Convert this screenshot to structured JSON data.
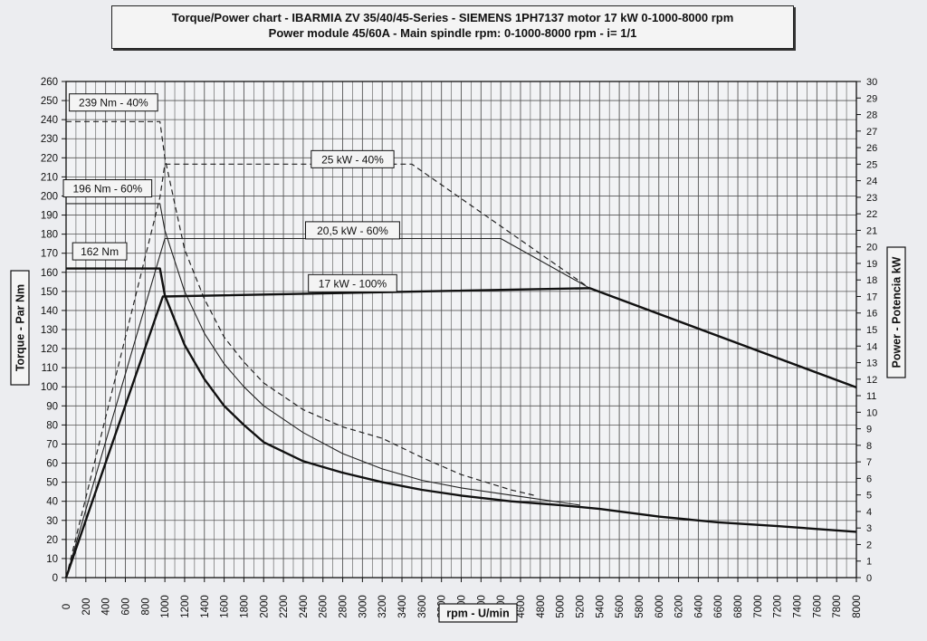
{
  "chart_data": {
    "type": "line",
    "title": "Torque/Power chart - IBARMIA ZV 35/40/45-Series - SIEMENS 1PH7137 motor 17 kW 0-1000-8000 rpm",
    "subtitle": "Power module 45/60A - Main spindle rpm: 0-1000-8000 rpm - i= 1/1",
    "xlabel": "rpm - U/min",
    "ylabel_left": "Torque - Par Nm",
    "ylabel_right": "Power - Potencia kW",
    "xlim": [
      0,
      8000
    ],
    "ylim_left": [
      0,
      260
    ],
    "ylim_right": [
      0,
      30
    ],
    "x_ticks": [
      0,
      200,
      400,
      600,
      800,
      1000,
      1200,
      1400,
      1600,
      1800,
      2000,
      2200,
      2400,
      2600,
      2800,
      3000,
      3200,
      3400,
      3600,
      3800,
      4000,
      4200,
      4400,
      4600,
      4800,
      5000,
      5200,
      5400,
      5600,
      5800,
      6000,
      6200,
      6400,
      6600,
      6800,
      7000,
      7200,
      7400,
      7600,
      7800,
      8000
    ],
    "y_ticks_left": [
      0,
      10,
      20,
      30,
      40,
      50,
      60,
      70,
      80,
      90,
      100,
      110,
      120,
      130,
      140,
      150,
      160,
      170,
      180,
      190,
      200,
      210,
      220,
      230,
      240,
      250,
      260
    ],
    "y_ticks_right": [
      0,
      1,
      2,
      3,
      4,
      5,
      6,
      7,
      8,
      9,
      10,
      11,
      12,
      13,
      14,
      15,
      16,
      17,
      18,
      19,
      20,
      21,
      22,
      23,
      24,
      25,
      26,
      27,
      28,
      29,
      30
    ],
    "grid": true,
    "series": [
      {
        "name": "239 Nm - 40%",
        "axis": "torque",
        "style": "dashed",
        "x": [
          0,
          950,
          1000,
          1200,
          1400,
          1600,
          1800,
          2000,
          2400,
          2800,
          3200,
          3600,
          4000,
          4500,
          4750
        ],
        "y": [
          239,
          239,
          220,
          172,
          146,
          126,
          113,
          102,
          88,
          79,
          73,
          63,
          54,
          46,
          43
        ]
      },
      {
        "name": "25 kW - 40%",
        "axis": "power",
        "style": "dashed",
        "x": [
          0,
          950,
          1000,
          3500,
          5300
        ],
        "y": [
          0,
          23,
          25,
          25,
          17.5
        ]
      },
      {
        "name": "196 Nm - 60%",
        "axis": "torque",
        "style": "thin",
        "x": [
          0,
          950,
          1000,
          1200,
          1400,
          1600,
          1800,
          2000,
          2400,
          2800,
          3200,
          3600,
          4000,
          4400,
          4800,
          5200
        ],
        "y": [
          196,
          196,
          182,
          150,
          128,
          112,
          100,
          90,
          76,
          65,
          57,
          51,
          47,
          44,
          41,
          38
        ]
      },
      {
        "name": "20,5 kW - 60%",
        "axis": "power",
        "style": "thin",
        "x": [
          0,
          950,
          1000,
          4400,
          5300
        ],
        "y": [
          0,
          19.5,
          20.5,
          20.5,
          17.5
        ]
      },
      {
        "name": "162 Nm",
        "axis": "torque",
        "style": "bold",
        "x": [
          0,
          950,
          1000,
          1100,
          1200,
          1400,
          1600,
          1800,
          2000,
          2400,
          2800,
          3200,
          3600,
          4000,
          4500,
          5000,
          5400,
          6000,
          6600,
          7200,
          8000
        ],
        "y": [
          162,
          162,
          148,
          135,
          122,
          104,
          90,
          80,
          71,
          61,
          55,
          50,
          46,
          43,
          40,
          38,
          36,
          32,
          29,
          27,
          24
        ]
      },
      {
        "name": "17 kW - 100%",
        "axis": "power",
        "style": "bold",
        "x": [
          0,
          980,
          5300,
          8000
        ],
        "y": [
          0,
          17,
          17.5,
          11.5
        ]
      }
    ],
    "labels": {
      "l239": "239 Nm - 40%",
      "l25": "25 kW - 40%",
      "l196": "196 Nm - 60%",
      "l205": "20,5 kW - 60%",
      "l162": "162 Nm",
      "l17": "17 kW - 100%"
    }
  }
}
